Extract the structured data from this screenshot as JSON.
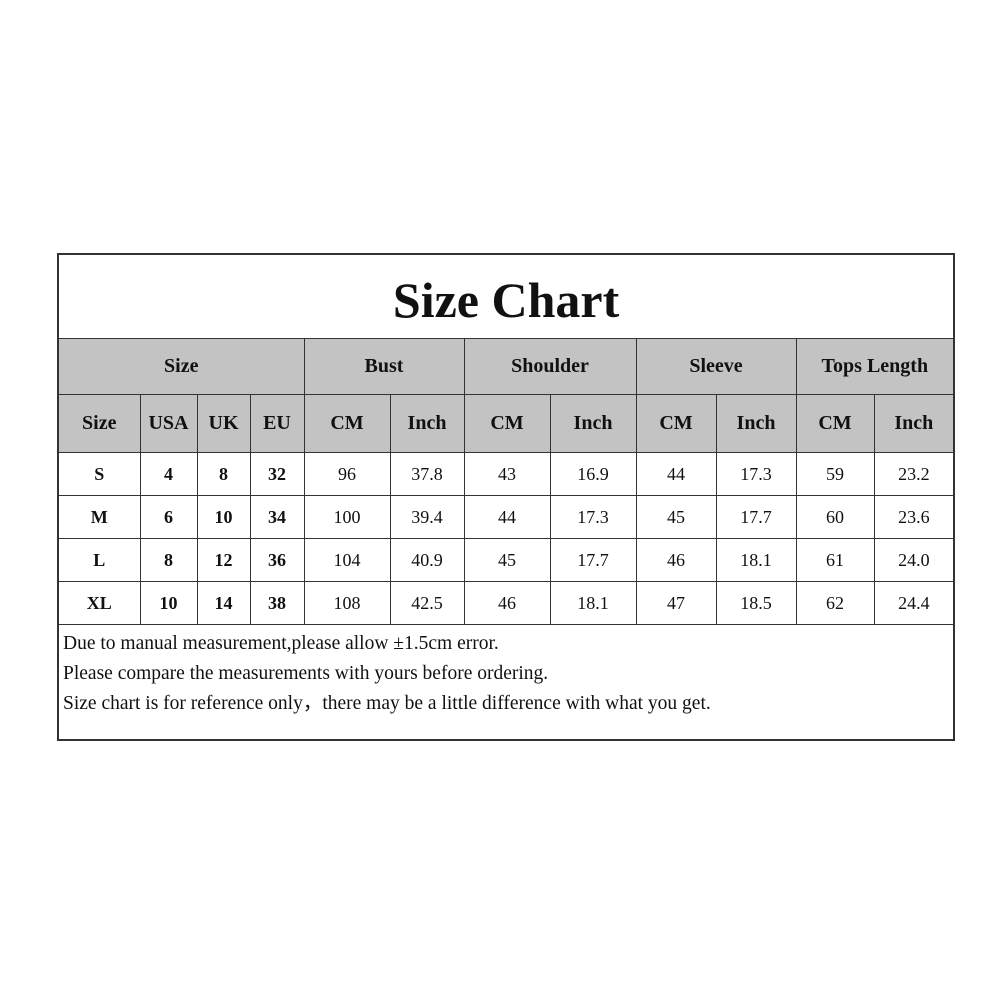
{
  "title": "Size Chart",
  "groups": [
    "Size",
    "Bust",
    "Shoulder",
    "Sleeve",
    "Tops Length"
  ],
  "subheaders": [
    "Size",
    "USA",
    "UK",
    "EU",
    "CM",
    "Inch",
    "CM",
    "Inch",
    "CM",
    "Inch",
    "CM",
    "Inch"
  ],
  "rows": [
    [
      "S",
      "4",
      "8",
      "32",
      "96",
      "37.8",
      "43",
      "16.9",
      "44",
      "17.3",
      "59",
      "23.2"
    ],
    [
      "M",
      "6",
      "10",
      "34",
      "100",
      "39.4",
      "44",
      "17.3",
      "45",
      "17.7",
      "60",
      "23.6"
    ],
    [
      "L",
      "8",
      "12",
      "36",
      "104",
      "40.9",
      "45",
      "17.7",
      "46",
      "18.1",
      "61",
      "24.0"
    ],
    [
      "XL",
      "10",
      "14",
      "38",
      "108",
      "42.5",
      "46",
      "18.1",
      "47",
      "18.5",
      "62",
      "24.4"
    ]
  ],
  "notes": [
    "Due to manual measurement,please allow ±1.5cm error.",
    "Please compare the measurements with yours before ordering.",
    "Size chart is for reference only，there may be a little difference with what you get."
  ],
  "colors": {
    "header_bg": "#c3c3c3",
    "border": "#333333"
  }
}
